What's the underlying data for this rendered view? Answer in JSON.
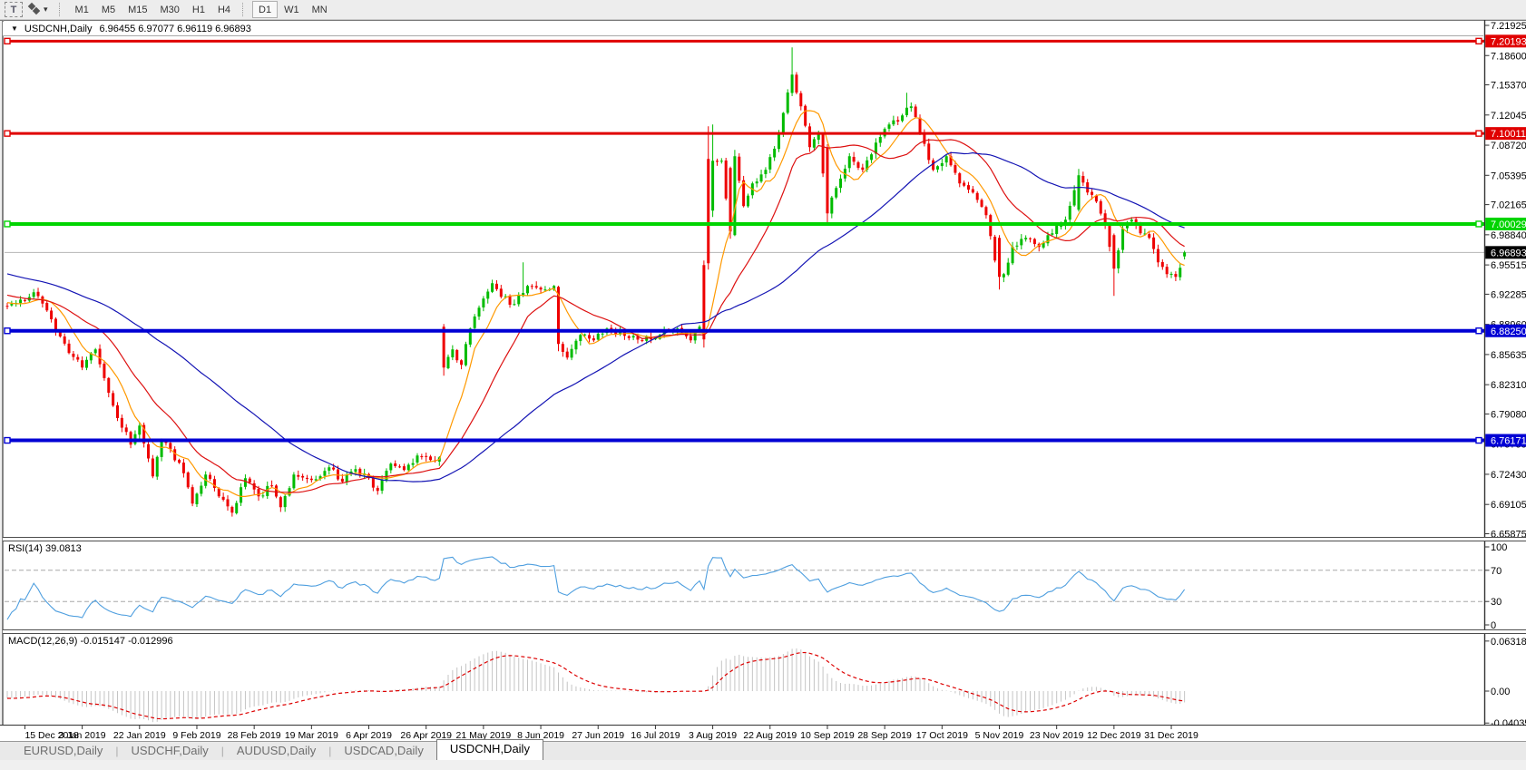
{
  "toolbar": {
    "text_tool_label": "T",
    "dropdown_caret": "▾",
    "timeframes": [
      "M1",
      "M5",
      "M15",
      "M30",
      "H1",
      "H4",
      "D1",
      "W1",
      "MN"
    ],
    "active_timeframe": "D1"
  },
  "window": {
    "collapse_icon": "▼",
    "title": "USDCNH,Daily",
    "ohlc_text": "6.96455 6.97077 6.96119 6.96893"
  },
  "tabs": {
    "items": [
      "EURUSD,Daily",
      "USDCHF,Daily",
      "AUDUSD,Daily",
      "USDCAD,Daily",
      "USDCNH,Daily"
    ],
    "active": "USDCNH,Daily"
  },
  "chart_data": {
    "type": "candlestick",
    "symbol": "USDCNH",
    "timeframe": "Daily",
    "current_bar": {
      "open": 6.96455,
      "high": 6.97077,
      "low": 6.96119,
      "close": 6.96893
    },
    "price_axis_ticks": [
      "7.21925",
      "7.18600",
      "7.15370",
      "7.12045",
      "7.08720",
      "7.05395",
      "7.02165",
      "6.98840",
      "6.95515",
      "6.92285",
      "6.88960",
      "6.85635",
      "6.82310",
      "6.79080",
      "6.75755",
      "6.72430",
      "6.69105",
      "6.65875"
    ],
    "date_ticks": [
      "15 Dec 2018",
      "3 Jan 2019",
      "22 Jan 2019",
      "9 Feb 2019",
      "28 Feb 2019",
      "19 Mar 2019",
      "6 Apr 2019",
      "26 Apr 2019",
      "21 May 2019",
      "8 Jun 2019",
      "27 Jun 2019",
      "16 Jul 2019",
      "3 Aug 2019",
      "22 Aug 2019",
      "10 Sep 2019",
      "28 Sep 2019",
      "17 Oct 2019",
      "5 Nov 2019",
      "23 Nov 2019",
      "12 Dec 2019",
      "31 Dec 2019"
    ],
    "bar_count": 268,
    "bars_per_tick": 13,
    "first_tick_bar": 4,
    "hlines": [
      {
        "price": 7.20193,
        "label": "7.20193",
        "color": "#e00000",
        "thickness": 3
      },
      {
        "price": 7.10011,
        "label": "7.10011",
        "color": "#e00000",
        "thickness": 3
      },
      {
        "price": 7.00029,
        "label": "7.00029",
        "color": "#00d400",
        "thickness": 4
      },
      {
        "price": 6.8825,
        "label": "6.88250",
        "color": "#0000d4",
        "thickness": 4
      },
      {
        "price": 6.76171,
        "label": "6.76171",
        "color": "#0000d4",
        "thickness": 4
      }
    ],
    "current_price": {
      "price": 6.96893,
      "label": "6.96893",
      "badge_color": "#000000",
      "line_color": "#b4b4b4"
    },
    "candle_colors": {
      "bull": "#00bb00",
      "bear": "#ee0000"
    },
    "moving_averages": [
      {
        "name": "fast-ma",
        "period": 8,
        "color": "#ff9900"
      },
      {
        "name": "medium-ma",
        "period": 20,
        "color": "#dd1111"
      },
      {
        "name": "slow-ma",
        "period": 55,
        "color": "#1414b4"
      }
    ],
    "price_path_anchors": [
      [
        0,
        6.91
      ],
      [
        4,
        6.916
      ],
      [
        6,
        6.925
      ],
      [
        9,
        6.905
      ],
      [
        11,
        6.882
      ],
      [
        14,
        6.858
      ],
      [
        17,
        6.842
      ],
      [
        20,
        6.862
      ],
      [
        24,
        6.8
      ],
      [
        28,
        6.757
      ],
      [
        30,
        6.778
      ],
      [
        33,
        6.722
      ],
      [
        35,
        6.762
      ],
      [
        39,
        6.737
      ],
      [
        42,
        6.692
      ],
      [
        45,
        6.724
      ],
      [
        48,
        6.7
      ],
      [
        51,
        6.682
      ],
      [
        54,
        6.72
      ],
      [
        57,
        6.7
      ],
      [
        60,
        6.712
      ],
      [
        62,
        6.688
      ],
      [
        65,
        6.724
      ],
      [
        69,
        6.718
      ],
      [
        73,
        6.732
      ],
      [
        76,
        6.716
      ],
      [
        79,
        6.73
      ],
      [
        82,
        6.72
      ],
      [
        84,
        6.706
      ],
      [
        87,
        6.736
      ],
      [
        90,
        6.729
      ],
      [
        93,
        6.745
      ],
      [
        96,
        6.74
      ],
      [
        98,
        6.743
      ],
      [
        99,
        6.842
      ],
      [
        101,
        6.862
      ],
      [
        103,
        6.845
      ],
      [
        105,
        6.885
      ],
      [
        107,
        6.908
      ],
      [
        110,
        6.935
      ],
      [
        112,
        6.92
      ],
      [
        115,
        6.912
      ],
      [
        118,
        6.932
      ],
      [
        121,
        6.928
      ],
      [
        124,
        6.932
      ],
      [
        125,
        6.868
      ],
      [
        127,
        6.853
      ],
      [
        130,
        6.878
      ],
      [
        133,
        6.872
      ],
      [
        136,
        6.885
      ],
      [
        140,
        6.877
      ],
      [
        144,
        6.872
      ],
      [
        148,
        6.878
      ],
      [
        152,
        6.885
      ],
      [
        155,
        6.872
      ],
      [
        157,
        6.887
      ],
      [
        158,
        6.873
      ],
      [
        159,
        6.957
      ],
      [
        160,
        7.07
      ],
      [
        162,
        7.07
      ],
      [
        164,
        6.992
      ],
      [
        165,
        7.075
      ],
      [
        167,
        7.02
      ],
      [
        169,
        7.045
      ],
      [
        172,
        7.06
      ],
      [
        175,
        7.1
      ],
      [
        178,
        7.165
      ],
      [
        180,
        7.13
      ],
      [
        182,
        7.085
      ],
      [
        184,
        7.1
      ],
      [
        186,
        7.012
      ],
      [
        188,
        7.04
      ],
      [
        191,
        7.075
      ],
      [
        194,
        7.06
      ],
      [
        197,
        7.09
      ],
      [
        200,
        7.11
      ],
      [
        203,
        7.12
      ],
      [
        205,
        7.13
      ],
      [
        207,
        7.1
      ],
      [
        210,
        7.06
      ],
      [
        213,
        7.075
      ],
      [
        216,
        7.045
      ],
      [
        219,
        7.035
      ],
      [
        222,
        7.01
      ],
      [
        224,
        6.96
      ],
      [
        225,
        6.942
      ],
      [
        226,
        6.945
      ],
      [
        228,
        6.975
      ],
      [
        231,
        6.985
      ],
      [
        234,
        6.975
      ],
      [
        237,
        6.99
      ],
      [
        240,
        7.005
      ],
      [
        243,
        7.054
      ],
      [
        245,
        7.035
      ],
      [
        247,
        7.025
      ],
      [
        249,
        7.0
      ],
      [
        251,
        6.951
      ],
      [
        253,
        6.995
      ],
      [
        255,
        7.005
      ],
      [
        257,
        6.99
      ],
      [
        259,
        6.985
      ],
      [
        261,
        6.958
      ],
      [
        263,
        6.945
      ],
      [
        265,
        6.942
      ],
      [
        266,
        6.952
      ],
      [
        267,
        6.96893
      ]
    ],
    "bar_overrides": [
      {
        "i": 99,
        "o": 6.887,
        "h": 6.89,
        "l": 6.833
      },
      {
        "i": 117,
        "h": 6.958
      },
      {
        "i": 125,
        "o": 6.931,
        "l": 6.86
      },
      {
        "i": 158,
        "o": 6.955,
        "h": 6.96,
        "l": 6.864
      },
      {
        "i": 159,
        "o": 7.072,
        "h": 7.108,
        "l": 6.95
      },
      {
        "i": 160,
        "o": 7.015,
        "h": 7.11,
        "l": 7.008
      },
      {
        "i": 164,
        "o": 7.062,
        "l": 6.984
      },
      {
        "i": 165,
        "o": 6.988,
        "h": 7.082
      },
      {
        "i": 178,
        "h": 7.195
      },
      {
        "i": 186,
        "o": 7.085,
        "l": 7.0
      },
      {
        "i": 204,
        "h": 7.145
      },
      {
        "i": 225,
        "o": 6.985,
        "l": 6.928
      },
      {
        "i": 243,
        "o": 7.016,
        "h": 7.061
      },
      {
        "i": 251,
        "o": 6.988,
        "l": 6.921
      },
      {
        "i": 267,
        "o": 6.96455,
        "h": 6.97077,
        "l": 6.96119
      }
    ],
    "indicators": {
      "rsi": {
        "label": "RSI(14) 39.0813",
        "period": 14,
        "current": 39.0813,
        "axis_levels": [
          "100",
          "70",
          "30",
          "0"
        ],
        "axis_level_values": [
          100,
          70,
          30,
          0
        ],
        "dashed_levels": [
          70,
          30
        ],
        "line_color": "#4f9fdf"
      },
      "macd": {
        "label": "MACD(12,26,9) -0.015147 -0.012996",
        "current_macd": -0.015147,
        "current_signal": -0.012996,
        "axis_labels": [
          "0.063184",
          "0.00",
          "-0.040355"
        ],
        "axis_values": [
          0.063184,
          0,
          -0.040355
        ],
        "histogram_color": "#c4c4c4",
        "signal_color": "#dd0000"
      }
    }
  }
}
